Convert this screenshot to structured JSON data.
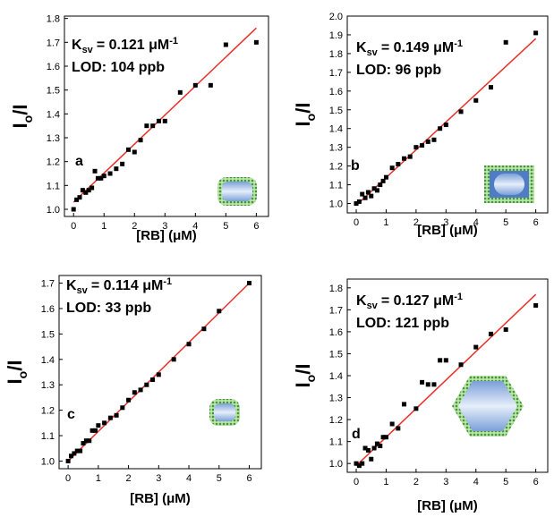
{
  "chart_data": [
    {
      "type": "scatter",
      "panel_label": "a",
      "annotation": {
        "k": "K",
        "sub": "sv",
        "eq": "= 0.121 μM",
        "sup": "-1",
        "lod": "LOD: 104 ppb"
      },
      "xlabel": "[RB] (μM)",
      "ylabel": {
        "main": "I",
        "sub": "o",
        "rest": "/I"
      },
      "x": [
        0,
        0.1,
        0.2,
        0.3,
        0.4,
        0.5,
        0.6,
        0.7,
        0.8,
        0.9,
        1.0,
        1.2,
        1.4,
        1.6,
        1.8,
        2.0,
        2.2,
        2.4,
        2.6,
        2.8,
        3.0,
        3.5,
        4.0,
        4.5,
        5.0,
        6.0
      ],
      "values": [
        1.0,
        1.04,
        1.05,
        1.08,
        1.07,
        1.08,
        1.09,
        1.16,
        1.13,
        1.13,
        1.14,
        1.15,
        1.17,
        1.19,
        1.25,
        1.24,
        1.29,
        1.35,
        1.35,
        1.37,
        1.37,
        1.49,
        1.52,
        1.52,
        1.69,
        1.7
      ],
      "color": "#000000",
      "fit": {
        "x": [
          0,
          6
        ],
        "y": [
          1.03,
          1.76
        ],
        "color": "#e8302a"
      },
      "xlim": [
        -0.3,
        6.4
      ],
      "ylim": [
        0.97,
        1.81
      ],
      "xticks": [
        0,
        1,
        2,
        3,
        4,
        5,
        6
      ],
      "yticks": [
        {
          "value": 1.0,
          "label": "1.0"
        },
        1.1,
        1.2,
        1.3,
        1.4,
        1.5,
        1.6,
        1.7,
        {
          "value": 1.8,
          "label": "1.8"
        }
      ]
    },
    {
      "type": "scatter",
      "panel_label": "b",
      "annotation": {
        "k": "K",
        "sub": "sv",
        "eq": "= 0.149 μM",
        "sup": "-1",
        "lod": "LOD: 96 ppb"
      },
      "xlabel": "[RB] (μM)",
      "ylabel": {
        "main": "I",
        "sub": "o",
        "rest": "/I"
      },
      "x": [
        0,
        0.1,
        0.2,
        0.3,
        0.4,
        0.5,
        0.6,
        0.7,
        0.8,
        0.9,
        1.0,
        1.2,
        1.4,
        1.6,
        1.8,
        2.0,
        2.2,
        2.4,
        2.6,
        2.8,
        3.0,
        3.5,
        4.0,
        4.5,
        5.0,
        6.0
      ],
      "values": [
        1.0,
        1.01,
        1.05,
        1.03,
        1.06,
        1.04,
        1.08,
        1.07,
        1.1,
        1.12,
        1.14,
        1.19,
        1.21,
        1.24,
        1.25,
        1.3,
        1.31,
        1.33,
        1.34,
        1.4,
        1.42,
        1.49,
        1.55,
        1.62,
        1.86,
        1.91
      ],
      "color": "#000000",
      "fit": {
        "x": [
          0,
          6
        ],
        "y": [
          0.99,
          1.88
        ],
        "color": "#e8302a"
      },
      "xlim": [
        -0.3,
        6.4
      ],
      "ylim": [
        0.95,
        2.0
      ],
      "xticks": [
        0,
        1,
        2,
        3,
        4,
        5,
        6
      ],
      "yticks": [
        {
          "value": 1.0,
          "label": "1.0"
        },
        1.1,
        1.2,
        1.3,
        1.4,
        1.5,
        1.6,
        1.7,
        1.8,
        1.9,
        {
          "value": 2.0,
          "label": "2.0"
        }
      ]
    },
    {
      "type": "scatter",
      "panel_label": "c",
      "annotation": {
        "k": "K",
        "sub": "sv",
        "eq": "= 0.114 μM",
        "sup": "-1",
        "lod": "LOD: 33 ppb"
      },
      "xlabel": "[RB] (μM)",
      "ylabel": {
        "main": "I",
        "sub": "o",
        "rest": "/I"
      },
      "x": [
        0,
        0.1,
        0.2,
        0.3,
        0.4,
        0.5,
        0.6,
        0.7,
        0.8,
        0.9,
        1.0,
        1.2,
        1.4,
        1.6,
        1.8,
        2.0,
        2.2,
        2.4,
        2.6,
        2.8,
        3.0,
        3.5,
        4.0,
        4.5,
        5.0,
        6.0
      ],
      "values": [
        1.0,
        1.02,
        1.03,
        1.04,
        1.04,
        1.07,
        1.08,
        1.08,
        1.12,
        1.12,
        1.14,
        1.15,
        1.17,
        1.18,
        1.21,
        1.24,
        1.27,
        1.28,
        1.3,
        1.32,
        1.34,
        1.4,
        1.46,
        1.52,
        1.59,
        1.7
      ],
      "color": "#000000",
      "fit": {
        "x": [
          0,
          6
        ],
        "y": [
          1.0,
          1.7
        ],
        "color": "#e8302a"
      },
      "xlim": [
        -0.3,
        6.4
      ],
      "ylim": [
        0.97,
        1.73
      ],
      "xticks": [
        0,
        1,
        2,
        3,
        4,
        5,
        6
      ],
      "yticks": [
        {
          "value": 1.0,
          "label": "1.0"
        },
        1.1,
        1.2,
        1.3,
        1.4,
        1.5,
        1.6,
        1.7
      ]
    },
    {
      "type": "scatter",
      "panel_label": "d",
      "annotation": {
        "k": "K",
        "sub": "sv",
        "eq": "= 0.127 μM",
        "sup": "-1",
        "lod": "LOD: 121 ppb"
      },
      "xlabel": "[RB] (μM)",
      "ylabel": {
        "main": "I",
        "sub": "o",
        "rest": "/I"
      },
      "x": [
        0,
        0.1,
        0.2,
        0.3,
        0.4,
        0.5,
        0.6,
        0.7,
        0.8,
        0.9,
        1.0,
        1.2,
        1.4,
        1.6,
        2.0,
        2.2,
        2.4,
        2.6,
        2.8,
        3.0,
        3.5,
        4.0,
        4.5,
        5.0,
        6.0
      ],
      "values": [
        1.0,
        0.99,
        1.0,
        1.07,
        1.06,
        1.02,
        1.07,
        1.09,
        1.08,
        1.12,
        1.12,
        1.18,
        1.16,
        1.27,
        1.25,
        1.37,
        1.36,
        1.36,
        1.47,
        1.47,
        1.45,
        1.53,
        1.59,
        1.61,
        1.72
      ],
      "color": "#000000",
      "fit": {
        "x": [
          0,
          6
        ],
        "y": [
          0.99,
          1.77
        ],
        "color": "#e8302a"
      },
      "xlim": [
        -0.3,
        6.4
      ],
      "ylim": [
        0.96,
        1.84
      ],
      "xticks": [
        0,
        1,
        2,
        3,
        4,
        5,
        6
      ],
      "yticks": [
        {
          "value": 1.0,
          "label": "1.0"
        },
        1.1,
        1.2,
        1.3,
        1.4,
        1.5,
        1.6,
        1.7,
        {
          "value": 1.8,
          "label": "1.8"
        }
      ]
    }
  ]
}
